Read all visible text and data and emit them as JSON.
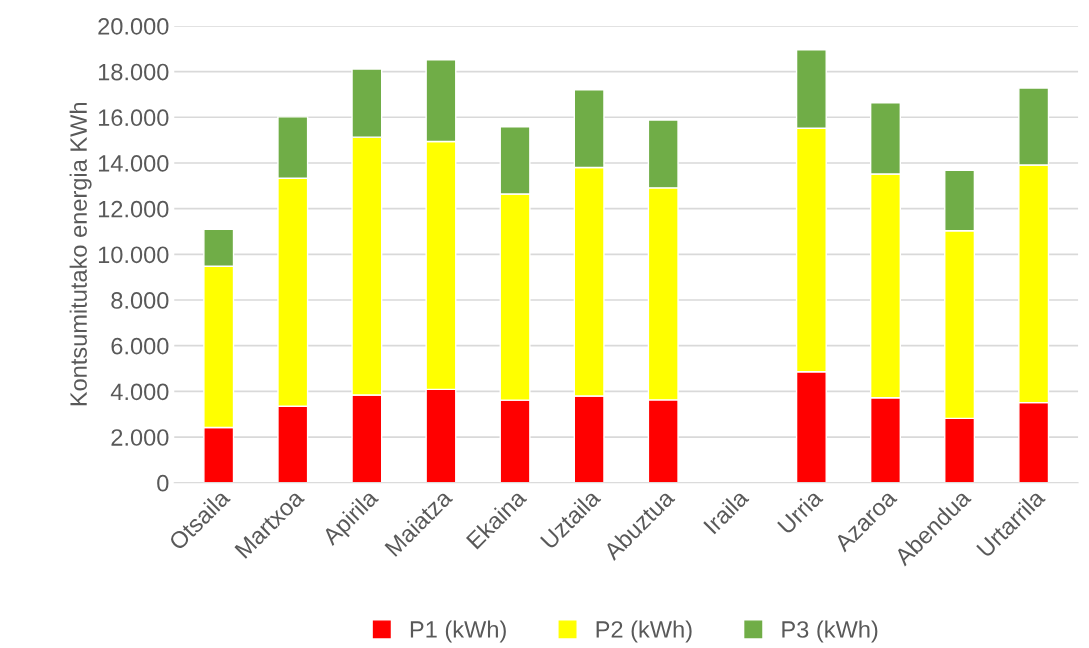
{
  "chart_data": {
    "type": "bar",
    "stacked": true,
    "ylabel": "Kontsumitutako energia KWh",
    "categories": [
      "Otsaila",
      "Martxoa",
      "Apirila",
      "Maiatza",
      "Ekaina",
      "Uztaila",
      "Abuztua",
      "Iraila",
      "Urria",
      "Azaroa",
      "Abendua",
      "Urtarrila"
    ],
    "series": [
      {
        "name": "P1 (kWh)",
        "color": "#ff0000",
        "values": [
          2420,
          3350,
          3840,
          4090,
          3620,
          3800,
          3630,
          null,
          4860,
          3720,
          2820,
          3510
        ]
      },
      {
        "name": "P2 (kWh)",
        "color": "#ffff00",
        "values": [
          7060,
          9980,
          11290,
          10850,
          9020,
          10000,
          9280,
          null,
          10660,
          9800,
          8210,
          10400
        ]
      },
      {
        "name": "P3 (kWh)",
        "color": "#70ad47",
        "values": [
          1620,
          2690,
          2980,
          3580,
          2940,
          3400,
          2970,
          null,
          3430,
          3110,
          2650,
          3370
        ]
      }
    ],
    "ylim": [
      0,
      20000
    ],
    "yticks": [
      0,
      {
        "value": 2000,
        "label": "2.000"
      },
      {
        "value": 4000,
        "label": "4.000"
      },
      {
        "value": 6000,
        "label": "6.000"
      },
      {
        "value": 8000,
        "label": "8.000"
      },
      {
        "value": 10000,
        "label": "10.000"
      },
      {
        "value": 12000,
        "label": "12.000"
      },
      {
        "value": 14000,
        "label": "14.000"
      },
      {
        "value": 16000,
        "label": "16.000"
      },
      {
        "value": 18000,
        "label": "18.000"
      },
      {
        "value": 20000,
        "label": "20.000"
      }
    ],
    "grid": "y",
    "legend": "bottom"
  }
}
